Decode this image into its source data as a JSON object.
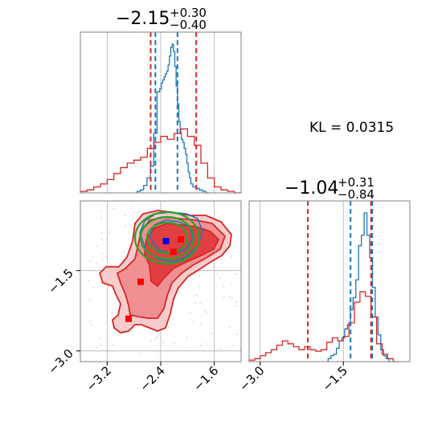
{
  "chart_data": [
    {
      "type": "histogram",
      "panel": "top-left",
      "title": {
        "value": "−2.15",
        "upper": "+0.30",
        "lower": "−0.40"
      },
      "xlim": [
        -3.6,
        -1.2
      ],
      "grid": true,
      "gridlines_x": [
        -3.2,
        -2.4,
        -1.6
      ],
      "series": [
        {
          "color": "#1f77b4",
          "x": [
            -2.73,
            -2.68,
            -2.63,
            -2.58,
            -2.53,
            -2.48,
            -2.43,
            -2.4,
            -2.38,
            -2.36,
            -2.34,
            -2.32,
            -2.3,
            -2.28,
            -2.26,
            -2.24,
            -2.22,
            -2.2,
            -2.18,
            -2.16,
            -2.14,
            -2.12,
            -2.1,
            -2.08,
            -2.06,
            -2.04,
            -2.02,
            -2.0,
            -1.98,
            -1.96,
            -1.94,
            -1.9,
            -1.85,
            -1.8,
            -1.75,
            -1.7
          ],
          "y": [
            0.01,
            0.02,
            0.05,
            0.1,
            0.18,
            0.4,
            0.68,
            0.7,
            0.74,
            0.76,
            0.78,
            0.8,
            0.82,
            0.86,
            0.92,
            0.98,
            1.0,
            0.95,
            0.85,
            0.72,
            0.6,
            0.48,
            0.4,
            0.36,
            0.34,
            0.3,
            0.26,
            0.2,
            0.14,
            0.1,
            0.06,
            0.04,
            0.03,
            0.02,
            0.01,
            0.0
          ],
          "quantiles": [
            -2.48,
            -2.15
          ]
        },
        {
          "color": "#d62728",
          "x": [
            -3.55,
            -3.45,
            -3.35,
            -3.25,
            -3.15,
            -3.05,
            -2.95,
            -2.85,
            -2.75,
            -2.65,
            -2.55,
            -2.45,
            -2.35,
            -2.25,
            -2.15,
            -2.05,
            -1.95,
            -1.85,
            -1.75,
            -1.65,
            -1.55,
            -1.45,
            -1.35,
            -1.25
          ],
          "y": [
            0.01,
            0.02,
            0.04,
            0.06,
            0.09,
            0.13,
            0.17,
            0.2,
            0.22,
            0.24,
            0.3,
            0.34,
            0.38,
            0.36,
            0.4,
            0.43,
            0.38,
            0.32,
            0.2,
            0.1,
            0.04,
            0.02,
            0.01,
            0.0
          ],
          "quantiles": [
            -2.55,
            -1.87
          ]
        }
      ]
    },
    {
      "type": "histogram",
      "panel": "bottom-right",
      "title": {
        "value": "−1.04",
        "upper": "+0.31",
        "lower": "−0.84"
      },
      "xlim": [
        -3.2,
        -0.3
      ],
      "xticks": [
        -3.0,
        -1.5
      ],
      "xtick_labels": [
        "−3.0",
        "−1.5"
      ],
      "grid": true,
      "gridlines_x": [
        -3.0,
        -1.5
      ],
      "series": [
        {
          "color": "#1f77b4",
          "x": [
            -1.75,
            -1.7,
            -1.65,
            -1.6,
            -1.55,
            -1.5,
            -1.45,
            -1.4,
            -1.35,
            -1.3,
            -1.25,
            -1.2,
            -1.15,
            -1.1,
            -1.05,
            -1.0,
            -0.95,
            -0.9,
            -0.85,
            -0.8,
            -0.75,
            -0.7,
            -0.65
          ],
          "y": [
            0.02,
            0.04,
            0.05,
            0.09,
            0.14,
            0.16,
            0.22,
            0.25,
            0.35,
            0.43,
            0.55,
            0.78,
            0.85,
            1.0,
            0.85,
            0.7,
            0.5,
            0.3,
            0.18,
            0.08,
            0.04,
            0.02,
            0.0
          ],
          "quantiles": [
            -1.37,
            -0.98
          ]
        },
        {
          "color": "#d62728",
          "x": [
            -3.15,
            -3.05,
            -2.95,
            -2.85,
            -2.75,
            -2.65,
            -2.55,
            -2.45,
            -2.35,
            -2.25,
            -2.15,
            -2.05,
            -1.95,
            -1.85,
            -1.75,
            -1.65,
            -1.55,
            -1.45,
            -1.35,
            -1.25,
            -1.15,
            -1.05,
            -0.95,
            -0.85,
            -0.75,
            -0.65,
            -0.55
          ],
          "y": [
            0.01,
            0.02,
            0.04,
            0.06,
            0.08,
            0.11,
            0.14,
            0.12,
            0.1,
            0.08,
            0.1,
            0.08,
            0.07,
            0.08,
            0.13,
            0.16,
            0.14,
            0.17,
            0.26,
            0.4,
            0.47,
            0.44,
            0.3,
            0.12,
            0.05,
            0.02,
            0.0
          ],
          "quantiles": [
            -2.14,
            -1.0
          ]
        }
      ]
    },
    {
      "type": "contour",
      "panel": "bottom-left",
      "xlim": [
        -3.6,
        -1.2
      ],
      "ylim": [
        -3.2,
        -0.2
      ],
      "xticks": [
        -3.2,
        -2.4,
        -1.6
      ],
      "xtick_labels": [
        "−3.2",
        "−2.4",
        "−1.6"
      ],
      "yticks": [
        -1.5,
        -3.0
      ],
      "ytick_labels": [
        "−1.5",
        "−3.0"
      ],
      "grid": true,
      "points": [
        {
          "color": "#0000ff",
          "x": -2.32,
          "y": -0.95
        },
        {
          "color": "#ff0000",
          "x": -2.1,
          "y": -0.92
        },
        {
          "color": "#ff0000",
          "x": -2.21,
          "y": -1.15
        },
        {
          "color": "#ff0000",
          "x": -2.7,
          "y": -1.71
        },
        {
          "color": "#ff0000",
          "x": -2.88,
          "y": -2.4
        }
      ],
      "contour_colors": {
        "red": "#d62728",
        "blue": "#1f77b4",
        "green": "#2ca02c"
      }
    }
  ],
  "annotation": {
    "kl_text": "KL = 0.0315"
  }
}
